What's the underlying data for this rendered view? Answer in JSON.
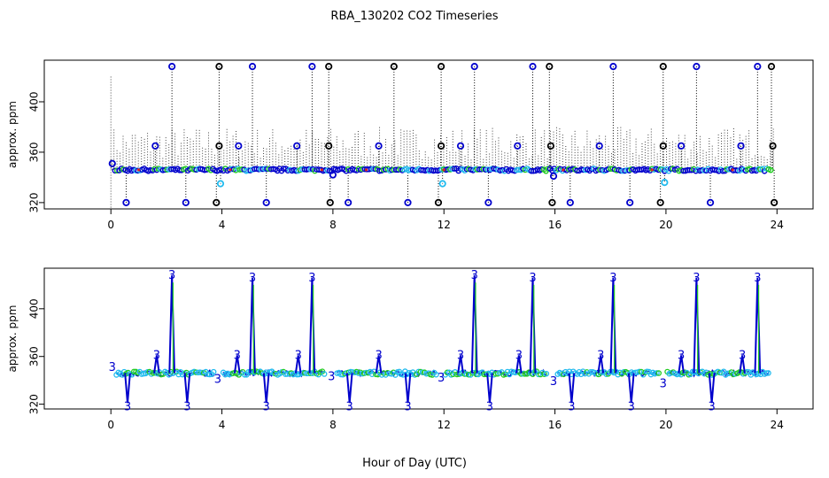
{
  "title": "RBA_130202  CO2 Timeseries",
  "xlabel": "Hour of Day (UTC)",
  "colors": {
    "black": "#000000",
    "blue": "#0000cc",
    "cyan": "#22bbee",
    "green": "#22cc22",
    "red": "#dd2222",
    "gray": "#444444"
  },
  "chart_data": [
    {
      "type": "scatter",
      "ylabel": "approx. ppm",
      "xlim": [
        -2.4,
        25.3
      ],
      "ylim": [
        315,
        433
      ],
      "xticks": [
        0,
        4,
        8,
        12,
        16,
        20,
        24
      ],
      "yticks": [
        320,
        360,
        400
      ],
      "baseline": 346,
      "low_points": [
        {
          "x": 0.55,
          "y": 320,
          "c": "blue"
        },
        {
          "x": 2.7,
          "y": 320,
          "c": "blue"
        },
        {
          "x": 3.8,
          "y": 320,
          "c": "black"
        },
        {
          "x": 5.6,
          "y": 320,
          "c": "blue"
        },
        {
          "x": 7.9,
          "y": 320,
          "c": "black"
        },
        {
          "x": 8.55,
          "y": 320,
          "c": "blue"
        },
        {
          "x": 10.7,
          "y": 320,
          "c": "blue"
        },
        {
          "x": 11.8,
          "y": 320,
          "c": "black"
        },
        {
          "x": 13.6,
          "y": 320,
          "c": "blue"
        },
        {
          "x": 15.9,
          "y": 320,
          "c": "black"
        },
        {
          "x": 16.55,
          "y": 320,
          "c": "blue"
        },
        {
          "x": 18.7,
          "y": 320,
          "c": "blue"
        },
        {
          "x": 19.8,
          "y": 320,
          "c": "black"
        },
        {
          "x": 21.6,
          "y": 320,
          "c": "blue"
        },
        {
          "x": 23.9,
          "y": 320,
          "c": "black"
        },
        {
          "x": 3.95,
          "y": 335,
          "c": "cyan"
        },
        {
          "x": 11.95,
          "y": 335,
          "c": "cyan"
        },
        {
          "x": 19.95,
          "y": 336,
          "c": "cyan"
        },
        {
          "x": 15.95,
          "y": 341,
          "c": "blue"
        },
        {
          "x": 8.0,
          "y": 342,
          "c": "blue"
        }
      ],
      "mid_points": [
        {
          "x": 1.6,
          "y": 365,
          "c": "blue"
        },
        {
          "x": 3.9,
          "y": 365,
          "c": "black"
        },
        {
          "x": 4.6,
          "y": 365,
          "c": "blue"
        },
        {
          "x": 6.7,
          "y": 365,
          "c": "blue"
        },
        {
          "x": 7.85,
          "y": 365,
          "c": "black"
        },
        {
          "x": 9.65,
          "y": 365,
          "c": "blue"
        },
        {
          "x": 11.9,
          "y": 365,
          "c": "black"
        },
        {
          "x": 12.6,
          "y": 365,
          "c": "blue"
        },
        {
          "x": 14.65,
          "y": 365,
          "c": "blue"
        },
        {
          "x": 15.85,
          "y": 365,
          "c": "black"
        },
        {
          "x": 17.6,
          "y": 365,
          "c": "blue"
        },
        {
          "x": 19.9,
          "y": 365,
          "c": "black"
        },
        {
          "x": 20.55,
          "y": 365,
          "c": "blue"
        },
        {
          "x": 22.7,
          "y": 365,
          "c": "blue"
        },
        {
          "x": 23.85,
          "y": 365,
          "c": "black"
        },
        {
          "x": 0.05,
          "y": 351,
          "c": "blue"
        }
      ],
      "high_points": [
        {
          "x": 2.2,
          "y": 428,
          "c": "blue"
        },
        {
          "x": 3.9,
          "y": 428,
          "c": "black"
        },
        {
          "x": 5.1,
          "y": 428,
          "c": "blue"
        },
        {
          "x": 7.25,
          "y": 428,
          "c": "blue"
        },
        {
          "x": 7.85,
          "y": 428,
          "c": "black"
        },
        {
          "x": 10.2,
          "y": 428,
          "c": "black"
        },
        {
          "x": 11.9,
          "y": 428,
          "c": "black"
        },
        {
          "x": 13.1,
          "y": 428,
          "c": "blue"
        },
        {
          "x": 15.2,
          "y": 428,
          "c": "blue"
        },
        {
          "x": 15.8,
          "y": 428,
          "c": "black"
        },
        {
          "x": 18.1,
          "y": 428,
          "c": "blue"
        },
        {
          "x": 19.9,
          "y": 428,
          "c": "black"
        },
        {
          "x": 21.1,
          "y": 428,
          "c": "blue"
        },
        {
          "x": 23.3,
          "y": 428,
          "c": "blue"
        },
        {
          "x": 23.8,
          "y": 428,
          "c": "black"
        }
      ]
    },
    {
      "type": "line",
      "ylabel": "approx. ppm",
      "xlim": [
        -2.4,
        25.3
      ],
      "ylim": [
        316,
        434
      ],
      "xticks": [
        0,
        4,
        8,
        12,
        16,
        20,
        24
      ],
      "yticks": [
        320,
        360,
        400
      ],
      "label": "3",
      "baseline": 346,
      "segments": [
        [
          0.2,
          3.75
        ],
        [
          4.05,
          7.75
        ],
        [
          8.15,
          11.75
        ],
        [
          12.05,
          15.75
        ],
        [
          16.1,
          19.75
        ],
        [
          20.05,
          23.75
        ]
      ],
      "spikes": [
        {
          "x": 2.2,
          "y": 428
        },
        {
          "x": 5.1,
          "y": 426
        },
        {
          "x": 7.25,
          "y": 426
        },
        {
          "x": 13.1,
          "y": 428
        },
        {
          "x": 15.2,
          "y": 426
        },
        {
          "x": 18.1,
          "y": 426
        },
        {
          "x": 21.1,
          "y": 426
        },
        {
          "x": 23.3,
          "y": 426
        },
        {
          "x": 1.65,
          "y": 361
        },
        {
          "x": 4.55,
          "y": 361
        },
        {
          "x": 6.75,
          "y": 361
        },
        {
          "x": 9.65,
          "y": 361
        },
        {
          "x": 12.6,
          "y": 361
        },
        {
          "x": 14.7,
          "y": 361
        },
        {
          "x": 17.65,
          "y": 361
        },
        {
          "x": 20.55,
          "y": 361
        },
        {
          "x": 22.75,
          "y": 361
        },
        {
          "x": 0.6,
          "y": 321
        },
        {
          "x": 2.75,
          "y": 321
        },
        {
          "x": 5.6,
          "y": 321
        },
        {
          "x": 8.6,
          "y": 321
        },
        {
          "x": 10.7,
          "y": 321
        },
        {
          "x": 13.65,
          "y": 321
        },
        {
          "x": 16.6,
          "y": 321
        },
        {
          "x": 18.75,
          "y": 321
        },
        {
          "x": 21.65,
          "y": 321
        }
      ],
      "edge_labels": [
        {
          "x": 0.05,
          "y": 351
        },
        {
          "x": 3.85,
          "y": 341
        },
        {
          "x": 7.95,
          "y": 343
        },
        {
          "x": 11.9,
          "y": 342
        },
        {
          "x": 15.95,
          "y": 339
        },
        {
          "x": 19.9,
          "y": 337
        }
      ]
    }
  ]
}
